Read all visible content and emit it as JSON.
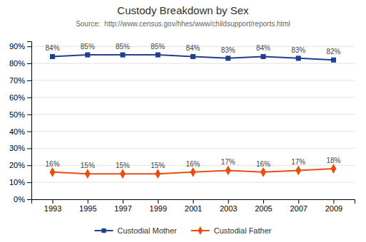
{
  "chart_data": {
    "type": "line",
    "title": "Custody Breakdown by Sex",
    "subtitle": "Source:  http://www.census.gov/hhes/www/childsupport/reports.html",
    "x": [
      1993,
      1995,
      1997,
      1999,
      2001,
      2003,
      2005,
      2007,
      2009
    ],
    "series": [
      {
        "name": "Custodial Mother",
        "color": "#1F3F8F",
        "marker": "square",
        "values": [
          84,
          85,
          85,
          85,
          84,
          83,
          84,
          83,
          82
        ],
        "value_labels": [
          "84%",
          "85%",
          "85%",
          "85%",
          "84%",
          "83%",
          "84%",
          "83%",
          "82%"
        ]
      },
      {
        "name": "Custodial Father",
        "color": "#E84E0F",
        "marker": "diamond",
        "values": [
          16,
          15,
          15,
          15,
          16,
          17,
          16,
          17,
          18
        ],
        "value_labels": [
          "16%",
          "15%",
          "15%",
          "15%",
          "16%",
          "17%",
          "16%",
          "17%",
          "18%"
        ]
      }
    ],
    "xlim": [
      1991.8,
      2010.2
    ],
    "xticks": [
      1993,
      1995,
      1997,
      1999,
      2001,
      2003,
      2005,
      2007,
      2009
    ],
    "ylim": [
      0,
      93
    ],
    "yticks": [
      {
        "value": 0,
        "label": "0%"
      },
      {
        "value": 10,
        "label": "10%"
      },
      {
        "value": 20,
        "label": "20%"
      },
      {
        "value": 30,
        "label": "30%"
      },
      {
        "value": 40,
        "label": "40%"
      },
      {
        "value": 50,
        "label": "50%"
      },
      {
        "value": 60,
        "label": "60%"
      },
      {
        "value": 70,
        "label": "70%"
      },
      {
        "value": 80,
        "label": "80%"
      },
      {
        "value": 90,
        "label": "90%"
      }
    ],
    "grid": true,
    "data_labels": true,
    "legend": "bottom"
  }
}
